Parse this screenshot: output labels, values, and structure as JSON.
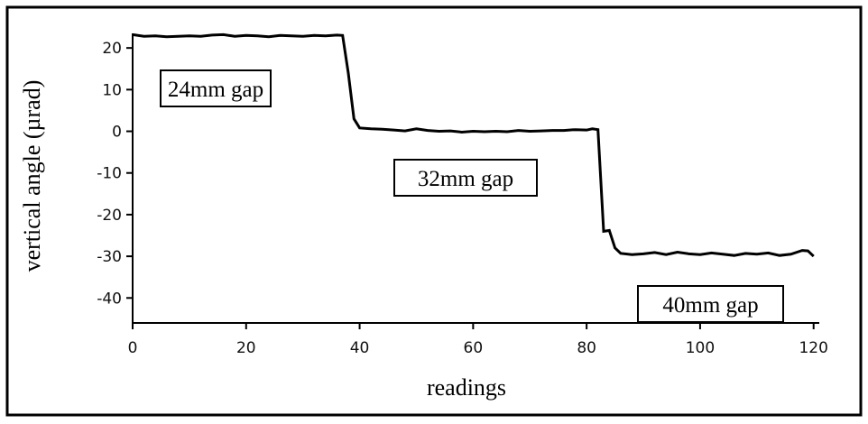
{
  "chart_data": {
    "type": "line",
    "xlabel": "readings",
    "ylabel": "vertical angle (µrad)",
    "annotations": [
      "24mm gap",
      "32mm gap",
      "40mm gap"
    ],
    "xlim": [
      0,
      121
    ],
    "ylim": [
      -46,
      23.5
    ],
    "xticks": [
      0,
      20,
      40,
      60,
      80,
      100,
      120
    ],
    "yticks": [
      20,
      10,
      0,
      -10,
      -20,
      -30,
      -40
    ],
    "grid": false,
    "series": [
      {
        "color": "#000000",
        "x": [
          0,
          2,
          4,
          6,
          8,
          10,
          12,
          14,
          16,
          18,
          20,
          22,
          24,
          26,
          28,
          30,
          32,
          34,
          36,
          37,
          38,
          39,
          40,
          42,
          44,
          46,
          48,
          50,
          52,
          54,
          56,
          58,
          60,
          62,
          64,
          66,
          68,
          70,
          72,
          74,
          76,
          78,
          80,
          81,
          82,
          83,
          84,
          85,
          86,
          88,
          90,
          92,
          94,
          96,
          98,
          100,
          102,
          104,
          106,
          108,
          110,
          112,
          114,
          116,
          118,
          119,
          120
        ],
        "values": [
          23.2,
          22.8,
          22.9,
          22.7,
          22.8,
          22.9,
          22.8,
          23.1,
          23.2,
          22.8,
          23.0,
          22.9,
          22.7,
          23.0,
          22.9,
          22.8,
          23.0,
          22.9,
          23.1,
          23.0,
          14,
          3,
          0.8,
          0.6,
          0.5,
          0.3,
          0.1,
          0.6,
          0.2,
          0,
          0.1,
          -0.2,
          0,
          -0.1,
          0,
          -0.1,
          0.2,
          0,
          0.1,
          0.2,
          0.2,
          0.4,
          0.3,
          0.6,
          0.4,
          -24,
          -23.8,
          -28,
          -29.3,
          -29.6,
          -29.4,
          -29.1,
          -29.6,
          -29,
          -29.4,
          -29.6,
          -29.2,
          -29.5,
          -29.8,
          -29.3,
          -29.5,
          -29.2,
          -29.8,
          -29.5,
          -28.6,
          -28.7,
          -30
        ]
      }
    ]
  }
}
